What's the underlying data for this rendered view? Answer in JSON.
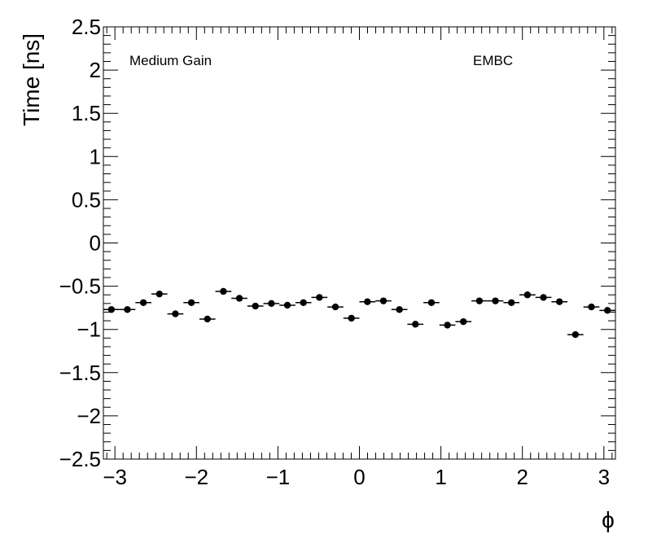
{
  "chart_data": {
    "type": "scatter",
    "xlabel": "ϕ",
    "ylabel": "Time [ns]",
    "annotations": [
      "Medium Gain",
      "EMBC"
    ],
    "xlim": [
      -3.14159,
      3.14159
    ],
    "ylim": [
      -2.5,
      2.5
    ],
    "x_ticks": [
      -3,
      -2,
      -1,
      0,
      1,
      2,
      3
    ],
    "x_tick_labels": [
      "−3",
      "−2",
      "−1",
      "0",
      "1",
      "2",
      "3"
    ],
    "y_ticks": [
      -2.5,
      -2,
      -1.5,
      -1,
      -0.5,
      0,
      0.5,
      1,
      1.5,
      2,
      2.5
    ],
    "y_tick_labels": [
      "−2.5",
      "−2",
      "−1.5",
      "−1",
      "−0.5",
      "0",
      "0.5",
      "1",
      "1.5",
      "2",
      "2.5"
    ],
    "bin_width": 0.19635,
    "series": [
      {
        "x": [
          -3.0434,
          -2.8471,
          -2.6507,
          -2.4544,
          -2.258,
          -2.0617,
          -1.8653,
          -1.669,
          -1.4726,
          -1.2763,
          -1.0799,
          -0.8836,
          -0.6872,
          -0.4909,
          -0.2945,
          -0.0982,
          0.0982,
          0.2945,
          0.4909,
          0.6872,
          0.8836,
          1.0799,
          1.2763,
          1.4726,
          1.669,
          1.8653,
          2.0617,
          2.258,
          2.4544,
          2.6507,
          2.8471,
          3.0434
        ],
        "y": [
          -0.77,
          -0.77,
          -0.69,
          -0.59,
          -0.82,
          -0.69,
          -0.88,
          -0.56,
          -0.64,
          -0.73,
          -0.7,
          -0.72,
          -0.69,
          -0.63,
          -0.74,
          -0.87,
          -0.68,
          -0.67,
          -0.77,
          -0.94,
          -0.69,
          -0.95,
          -0.91,
          -0.67,
          -0.67,
          -0.69,
          -0.6,
          -0.63,
          -0.68,
          -1.06,
          -0.74,
          -0.78
        ]
      }
    ],
    "grid": false,
    "marker": "filled-circle",
    "color": "#000000"
  }
}
